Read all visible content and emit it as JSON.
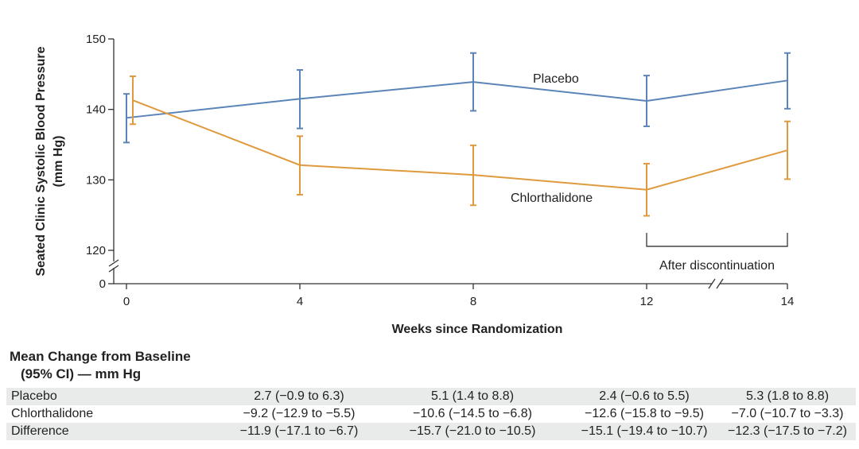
{
  "chart_data": {
    "type": "line",
    "x": [
      0,
      4,
      8,
      12,
      14
    ],
    "x_tick_labels": [
      "0",
      "4",
      "8",
      "12",
      "14"
    ],
    "y_ticks": [
      120,
      130,
      140,
      150
    ],
    "y_zero_label": "0",
    "ylim": [
      120,
      150
    ],
    "ylabel_line1": "Seated Clinic Systolic Blood Pressure",
    "ylabel_line2": "(mm Hg)",
    "xlabel": "Weeks since Randomization",
    "series": [
      {
        "name": "Placebo",
        "color": "#5b84b8",
        "values": [
          138.8,
          141.5,
          143.9,
          141.2,
          144.1
        ],
        "ci_low": [
          135.3,
          137.3,
          139.8,
          137.6,
          140.1
        ],
        "ci_high": [
          142.2,
          145.6,
          148.0,
          144.8,
          148.0
        ]
      },
      {
        "name": "Chlorthalidone",
        "color": "#e09a3e",
        "values": [
          141.3,
          132.1,
          130.7,
          128.6,
          134.2
        ],
        "ci_low": [
          137.9,
          127.9,
          126.4,
          124.9,
          130.1
        ],
        "ci_high": [
          144.7,
          136.2,
          134.9,
          132.3,
          138.3
        ]
      }
    ],
    "annotation": {
      "text": "After discontinuation",
      "x_from": 12,
      "x_to": 14
    }
  },
  "table": {
    "title_line1": "Mean Change from Baseline",
    "title_line2": "(95% CI) — mm Hg",
    "rows": [
      {
        "label": "Placebo",
        "values": [
          "2.7 (−0.9 to 6.3)",
          "5.1 (1.4 to 8.8)",
          "2.4 (−0.6 to 5.5)",
          "5.3 (1.8 to 8.8)"
        ]
      },
      {
        "label": "Chlorthalidone",
        "values": [
          "−9.2 (−12.9 to −5.5)",
          "−10.6 (−14.5 to −6.8)",
          "−12.6 (−15.8 to −9.5)",
          "−7.0 (−10.7 to −3.3)"
        ]
      },
      {
        "label": "Difference",
        "values": [
          "−11.9 (−17.1 to −6.7)",
          "−15.7 (−21.0 to −10.5)",
          "−15.1 (−19.4 to −10.7)",
          "−12.3 (−17.5 to −7.2)"
        ]
      }
    ]
  }
}
